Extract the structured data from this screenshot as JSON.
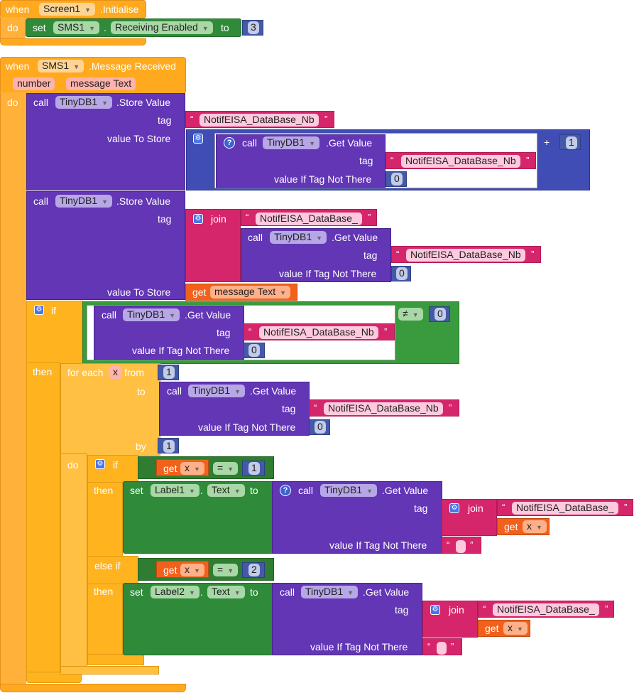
{
  "k": {
    "when": "when",
    "do": "do",
    "set": "set",
    "to": "to",
    "call": "call",
    "tag": "tag",
    "value_to_store": "value To Store",
    "value_if_tag_not_there": "value If Tag Not There",
    "if": "if",
    "then": "then",
    "else_if": "else if",
    "for_each": "for each",
    "from": "from",
    "by": "by",
    "join": "join",
    "get": "get",
    "plus": "+",
    "neq": "≠",
    "eq": "=",
    "dot": ".",
    "open_q": "“",
    "close_q": "”"
  },
  "b1": {
    "component": "Screen1",
    "event": ".Initialise",
    "target": "SMS1",
    "property": "Receiving Enabled",
    "value": "3"
  },
  "b2": {
    "component": "SMS1",
    "event": ".Message Received",
    "param1": "number",
    "param2": "message Text",
    "db": "TinyDB1",
    "store_value": ".Store Value",
    "get_value": ".Get Value",
    "tag_nb": "NotifEISA_DataBase_Nb",
    "tag_prefix": "NotifEISA_DataBase_",
    "one": "1",
    "zero": "0",
    "two": "2",
    "loop_var": "x",
    "label1": "Label1",
    "label2": "Label2",
    "text_prop": "Text"
  },
  "colors": {
    "event": "#ffaa1e",
    "control": "#ffb41f",
    "set": "#2f8a3a",
    "procedure": "#6236b5",
    "text": "#d6266b",
    "math": "#3f4db5",
    "variable": "#f2611b",
    "logic": "#3a9a3e"
  },
  "icons": {
    "mutator": "gear-icon",
    "help": "question-icon",
    "dropdown": "dropdown-arrow-icon"
  }
}
